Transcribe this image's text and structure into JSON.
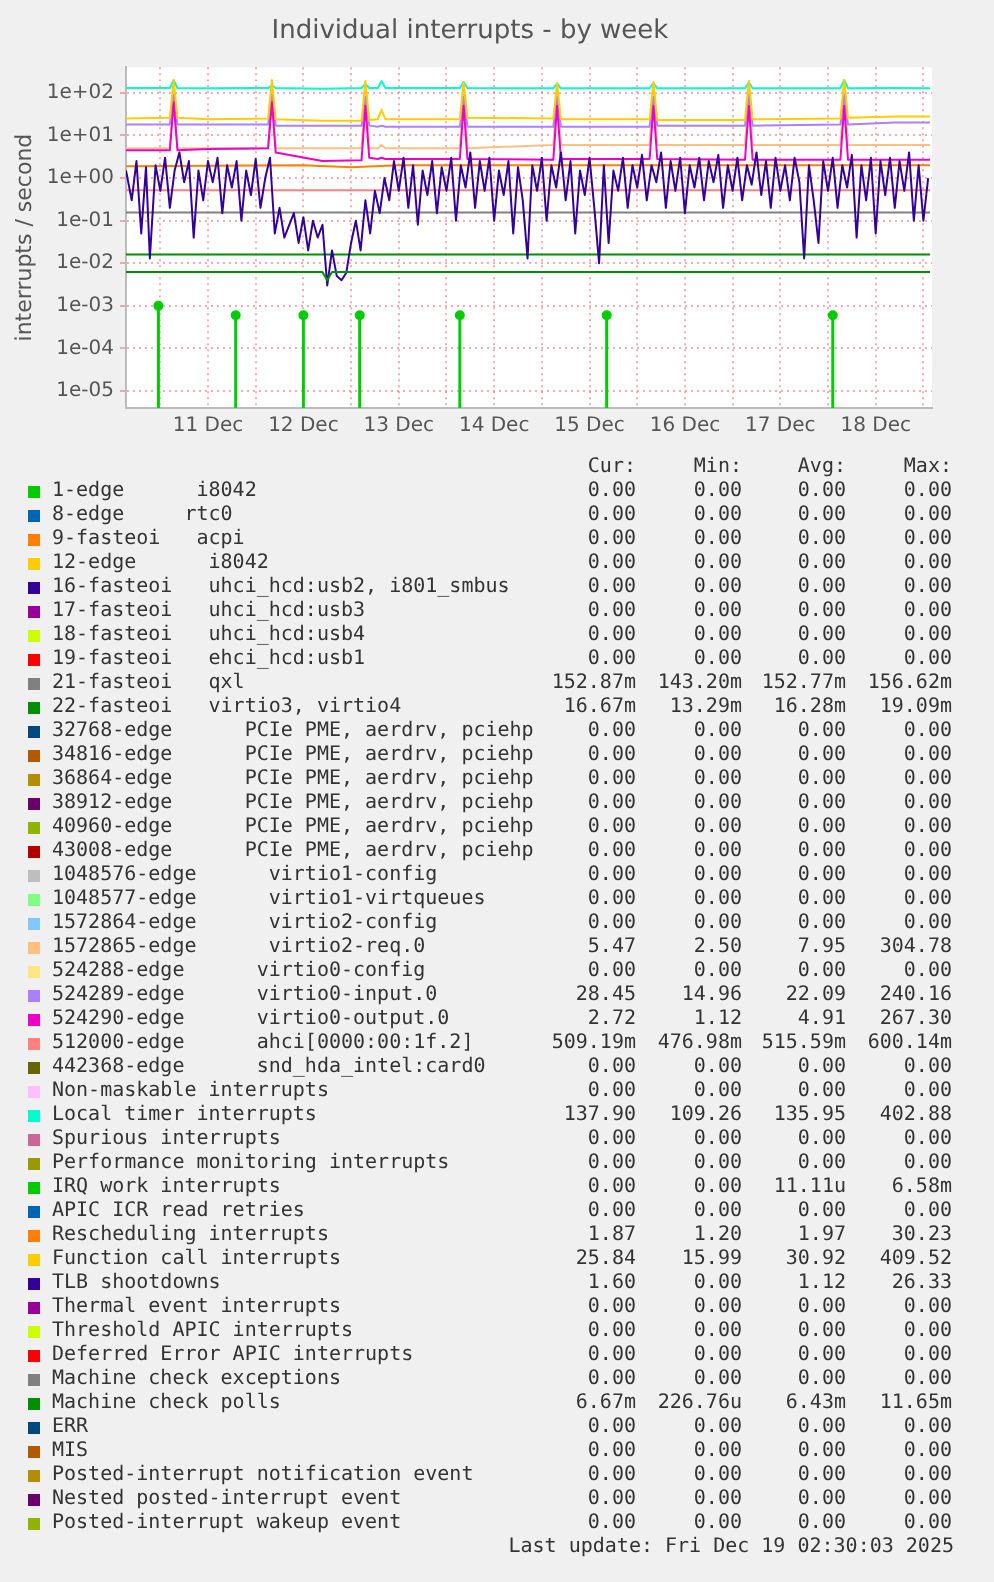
{
  "chart_data": {
    "type": "line",
    "title": "Individual interrupts - by week",
    "ylabel": "interrupts / second",
    "log": true,
    "grid": true,
    "legend": "bottom",
    "marker": "none",
    "line_style": "solid",
    "xlim": [
      "--12-10T15:22",
      "--12-19T02:10"
    ],
    "xticks": [
      {
        "value": "--12-11",
        "label": null
      },
      {
        "value": "--12-11T12:00",
        "label": "11 Dec"
      },
      {
        "value": "--12-12",
        "label": null
      },
      {
        "value": "--12-12T12:00",
        "label": "12 Dec"
      },
      {
        "value": "--12-13",
        "label": null
      },
      {
        "value": "--12-13T12:00",
        "label": "13 Dec"
      },
      {
        "value": "--12-14",
        "label": null
      },
      {
        "value": "--12-14T12:00",
        "label": "14 Dec"
      },
      {
        "value": "--12-15",
        "label": null
      },
      {
        "value": "--12-15T12:00",
        "label": "15 Dec"
      },
      {
        "value": "--12-16",
        "label": null
      },
      {
        "value": "--12-16T12:00",
        "label": "16 Dec"
      },
      {
        "value": "--12-17",
        "label": null
      },
      {
        "value": "--12-17T12:00",
        "label": "17 Dec"
      },
      {
        "value": "--12-18",
        "label": null
      },
      {
        "value": "--12-18T12:00",
        "label": "18 Dec"
      },
      {
        "value": "--12-19",
        "label": null
      }
    ],
    "ylim": [
      4e-06,
      400
    ],
    "yticks": [
      {
        "value": 1e-05,
        "label": "1e-05"
      },
      {
        "value": 0.0001,
        "label": "1e-04"
      },
      {
        "value": 0.001,
        "label": "1e-03"
      },
      {
        "value": 0.01,
        "label": "1e-02"
      },
      {
        "value": 0.1,
        "label": "1e-01"
      },
      {
        "value": 1,
        "label": "1e+00"
      },
      {
        "value": 10,
        "label": "1e+01"
      },
      {
        "value": 100,
        "label": "1e+02"
      }
    ],
    "series": [
      {
        "name": "1-edge      i8042",
        "color": "#00cc00"
      },
      {
        "name": "8-edge     rtc0",
        "color": "#0066b3"
      },
      {
        "name": "9-fasteoi   acpi",
        "color": "#ff8000"
      },
      {
        "name": "12-edge      i8042",
        "color": "#ffcc00"
      },
      {
        "name": "16-fasteoi   uhci_hcd:usb2, i801_smbus",
        "color": "#330099"
      },
      {
        "name": "17-fasteoi   uhci_hcd:usb3",
        "color": "#990099"
      },
      {
        "name": "18-fasteoi   uhci_hcd:usb4",
        "color": "#ccff00"
      },
      {
        "name": "19-fasteoi   ehci_hcd:usb1",
        "color": "#ff0000"
      },
      {
        "name": "21-fasteoi   qxl",
        "color": "#808080",
        "x": [
          "--12-10T15:22",
          "--12-19T01:41"
        ],
        "values": [
          0.155,
          0.155
        ]
      },
      {
        "name": "22-fasteoi   virtio3, virtio4",
        "color": "#008f00",
        "x": [
          "--12-10T15:22",
          "--12-19T01:41"
        ],
        "values": [
          0.016,
          0.016
        ]
      },
      {
        "name": "32768-edge      PCIe PME, aerdrv, pciehp",
        "color": "#00487d"
      },
      {
        "name": "34816-edge      PCIe PME, aerdrv, pciehp",
        "color": "#b35a00"
      },
      {
        "name": "36864-edge      PCIe PME, aerdrv, pciehp",
        "color": "#b38f00"
      },
      {
        "name": "38912-edge      PCIe PME, aerdrv, pciehp",
        "color": "#6b006b"
      },
      {
        "name": "40960-edge      PCIe PME, aerdrv, pciehp",
        "color": "#8fb300"
      },
      {
        "name": "43008-edge      PCIe PME, aerdrv, pciehp",
        "color": "#b30000"
      },
      {
        "name": "1048576-edge      virtio1-config",
        "color": "#bebebe"
      },
      {
        "name": "1048577-edge      virtio1-virtqueues",
        "color": "#80ff80"
      },
      {
        "name": "1572864-edge      virtio2-config",
        "color": "#80c9ff"
      },
      {
        "name": "1572865-edge      virtio2-req.0",
        "color": "#ffc080",
        "x": [
          "--12-10T15:22",
          "--12-11T02:24",
          "--12-11T03:22",
          "--12-11T04:19",
          "--12-11T12:00",
          "--12-12T03:07",
          "--12-12T04:05",
          "--12-12T05:02",
          "--12-12T16:48",
          "--12-13T02:38",
          "--12-13T03:36",
          "--12-13T04:34",
          "--12-13T06:43",
          "--12-13T07:41",
          "--12-13T08:38",
          "--12-14T03:22",
          "--12-14T04:19",
          "--12-14T05:17",
          "--12-15T02:53",
          "--12-15T03:50",
          "--12-15T04:48",
          "--12-16T03:07",
          "--12-16T04:05",
          "--12-16T05:02",
          "--12-17T03:07",
          "--12-17T04:05",
          "--12-17T05:02",
          "--12-18T03:07",
          "--12-18T04:05",
          "--12-18T05:02",
          "--12-18T16:48",
          "--12-19T01:41"
        ],
        "values": [
          5,
          5,
          100,
          5,
          5,
          5,
          100,
          5,
          5,
          5,
          100,
          5,
          5,
          6,
          5,
          5,
          100,
          5,
          6,
          100,
          6,
          6,
          100,
          6,
          6,
          100,
          6,
          6,
          100,
          6,
          6,
          6
        ]
      },
      {
        "name": "524288-edge      virtio0-config",
        "color": "#ffe680"
      },
      {
        "name": "524289-edge      virtio0-input.0",
        "color": "#aa80ff",
        "x": [
          "--12-10T15:22",
          "--12-11T02:24",
          "--12-11T03:22",
          "--12-11T04:19",
          "--12-11T12:00",
          "--12-12T03:07",
          "--12-12T04:05",
          "--12-12T05:02",
          "--12-12T16:48",
          "--12-13T02:38",
          "--12-13T03:36",
          "--12-13T04:34",
          "--12-13T06:43",
          "--12-13T07:41",
          "--12-13T08:38",
          "--12-14T03:22",
          "--12-14T04:19",
          "--12-14T05:17",
          "--12-15T02:53",
          "--12-15T03:50",
          "--12-15T04:48",
          "--12-16T03:07",
          "--12-16T04:05",
          "--12-16T05:02",
          "--12-17T03:07",
          "--12-17T04:05",
          "--12-17T05:02",
          "--12-18T03:07",
          "--12-18T04:05",
          "--12-18T05:02",
          "--12-18T16:48",
          "--12-19T01:41"
        ],
        "values": [
          18,
          18,
          90,
          18,
          18,
          18,
          90,
          17,
          17,
          17,
          80,
          17,
          16,
          17,
          16,
          16,
          80,
          16,
          16,
          80,
          16,
          16,
          80,
          17,
          17,
          90,
          17,
          18,
          90,
          18,
          20,
          20
        ]
      },
      {
        "name": "524290-edge      virtio0-output.0",
        "color": "#ee00cc",
        "x": [
          "--12-10T15:22",
          "--12-11T02:24",
          "--12-11T03:22",
          "--12-11T04:19",
          "--12-11T12:00",
          "--12-12T03:07",
          "--12-12T04:05",
          "--12-12T05:02",
          "--12-12T16:48",
          "--12-13T02:38",
          "--12-13T03:36",
          "--12-13T04:34",
          "--12-13T06:43",
          "--12-13T07:41",
          "--12-13T08:38",
          "--12-14T03:22",
          "--12-14T04:19",
          "--12-14T05:17",
          "--12-15T02:53",
          "--12-15T03:50",
          "--12-15T04:48",
          "--12-16T03:07",
          "--12-16T04:05",
          "--12-16T05:02",
          "--12-17T03:07",
          "--12-17T04:05",
          "--12-17T05:02",
          "--12-18T03:07",
          "--12-18T04:05",
          "--12-18T05:02",
          "--12-18T16:48",
          "--12-19T01:41"
        ],
        "values": [
          4.5,
          4.5,
          60,
          4.5,
          4.8,
          5,
          60,
          4,
          2.5,
          2.6,
          50,
          3,
          2.8,
          3,
          2.8,
          2.8,
          50,
          2.8,
          2.7,
          50,
          2.8,
          2.8,
          50,
          2.8,
          2.7,
          50,
          2.7,
          2.7,
          50,
          2.7,
          2.7,
          2.7
        ]
      },
      {
        "name": "512000-edge      ahci[0000:00:1f.2]",
        "color": "#ff8080",
        "x": [
          "--12-10T15:22",
          "--12-19T01:41"
        ],
        "values": [
          0.52,
          0.52
        ]
      },
      {
        "name": "442368-edge      snd_hda_intel:card0",
        "color": "#666600"
      },
      {
        "name": "Non-maskable interrupts",
        "color": "#ffbfff"
      },
      {
        "name": "Local timer interrupts",
        "color": "#00ffcc",
        "x": [
          "--12-10T15:22",
          "--12-11T02:24",
          "--12-11T03:22",
          "--12-11T04:19",
          "--12-11T12:00",
          "--12-12T03:07",
          "--12-12T04:05",
          "--12-12T05:02",
          "--12-12T16:48",
          "--12-13T02:38",
          "--12-13T03:36",
          "--12-13T04:34",
          "--12-13T06:43",
          "--12-13T07:41",
          "--12-13T08:38",
          "--12-14T03:22",
          "--12-14T04:19",
          "--12-14T05:17",
          "--12-15T02:53",
          "--12-15T03:50",
          "--12-15T04:48",
          "--12-16T03:07",
          "--12-16T04:05",
          "--12-16T05:02",
          "--12-17T03:07",
          "--12-17T04:05",
          "--12-17T05:02",
          "--12-18T03:07",
          "--12-18T04:05",
          "--12-18T05:02",
          "--12-18T16:48",
          "--12-19T01:41"
        ],
        "values": [
          130,
          130,
          200,
          130,
          128,
          130,
          150,
          130,
          125,
          130,
          160,
          130,
          130,
          190,
          130,
          130,
          180,
          130,
          128,
          165,
          128,
          128,
          170,
          128,
          128,
          175,
          128,
          128,
          200,
          128,
          130,
          128
        ]
      },
      {
        "name": "Spurious interrupts",
        "color": "#cc6699"
      },
      {
        "name": "Performance monitoring interrupts",
        "color": "#999900"
      },
      {
        "name": "IRQ work interrupts",
        "type": "lollipop",
        "marker": "circle",
        "color": "#00cc00",
        "x": [
          "--12-10T23:31",
          "--12-11T18:58",
          "--12-12T12:00",
          "--12-13T02:10",
          "--12-14T03:22",
          "--12-15T16:19",
          "--12-18T01:12"
        ],
        "values": [
          0.001,
          0.0006,
          0.0006,
          0.0006,
          0.0006,
          0.0006,
          0.0006
        ]
      },
      {
        "name": "APIC ICR read retries",
        "color": "#0066b3"
      },
      {
        "name": "Rescheduling interrupts",
        "color": "#ff8000",
        "x": [
          "--12-10T15:22",
          "--12-12T12:00",
          "--12-13T00:00",
          "--12-13T12:00",
          "--12-19T01:41"
        ],
        "values": [
          1.9,
          2,
          1.8,
          2,
          2
        ]
      },
      {
        "name": "Function call interrupts",
        "color": "#ffcc00",
        "x": [
          "--12-10T15:22",
          "--12-11T02:24",
          "--12-11T03:22",
          "--12-11T04:19",
          "--12-11T12:00",
          "--12-12T03:07",
          "--12-12T04:05",
          "--12-12T05:02",
          "--12-12T16:48",
          "--12-13T02:38",
          "--12-13T03:36",
          "--12-13T04:34",
          "--12-13T06:43",
          "--12-13T07:41",
          "--12-13T08:38",
          "--12-14T03:22",
          "--12-14T04:19",
          "--12-14T05:17",
          "--12-15T02:53",
          "--12-15T03:50",
          "--12-15T04:48",
          "--12-16T03:07",
          "--12-16T04:05",
          "--12-16T05:02",
          "--12-17T03:07",
          "--12-17T04:05",
          "--12-17T05:02",
          "--12-18T03:07",
          "--12-18T04:05",
          "--12-18T05:02",
          "--12-18T16:48",
          "--12-19T01:41"
        ],
        "values": [
          25,
          26,
          200,
          26,
          24,
          25,
          200,
          24,
          22,
          22,
          190,
          23,
          24,
          40,
          24,
          24,
          180,
          26,
          25,
          170,
          24,
          24,
          180,
          23,
          23,
          190,
          24,
          25,
          200,
          26,
          28,
          28
        ]
      },
      {
        "name": "TLB shootdowns",
        "color": "#330099",
        "x": [
          "--12-10T15:22",
          "--12-10T16:48",
          "--12-10T18:00",
          "--12-10T19:12",
          "--12-10T20:24",
          "--12-10T21:22",
          "--12-10T22:48",
          "--12-11T00:00",
          "--12-11T01:12",
          "--12-11T02:24",
          "--12-11T03:36",
          "--12-11T04:48",
          "--12-11T06:00",
          "--12-11T07:12",
          "--12-11T08:24",
          "--12-11T09:36",
          "--12-11T10:48",
          "--12-11T12:00",
          "--12-11T13:12",
          "--12-11T14:24",
          "--12-11T15:36",
          "--12-11T16:48",
          "--12-11T18:00",
          "--12-11T19:12",
          "--12-11T20:24",
          "--12-11T21:36",
          "--12-11T22:48",
          "--12-12T00:00",
          "--12-12T01:12",
          "--12-12T02:24",
          "--12-12T03:36",
          "--12-12T04:48",
          "--12-12T06:00",
          "--12-12T07:12",
          "--12-12T09:36",
          "--12-12T10:48",
          "--12-12T12:00",
          "--12-12T13:12",
          "--12-12T14:24",
          "--12-12T15:36",
          "--12-12T16:48",
          "--12-12T18:00",
          "--12-12T19:12",
          "--12-12T20:24",
          "--12-12T21:36",
          "--12-12T22:48",
          "--12-13T00:00",
          "--12-13T01:12",
          "--12-13T02:24",
          "--12-13T03:36",
          "--12-13T04:48",
          "--12-13T06:00",
          "--12-13T07:12",
          "--12-13T08:24",
          "--12-13T09:36",
          "--12-13T10:48",
          "--12-13T12:00",
          "--12-13T13:12",
          "--12-13T14:24",
          "--12-13T15:36",
          "--12-13T16:48",
          "--12-13T18:00",
          "--12-13T19:12",
          "--12-13T20:24",
          "--12-13T21:36",
          "--12-13T22:48",
          "--12-14T00:00",
          "--12-14T01:12",
          "--12-14T02:24",
          "--12-14T03:36",
          "--12-14T04:48",
          "--12-14T06:00",
          "--12-14T07:12",
          "--12-14T08:24",
          "--12-14T09:36",
          "--12-14T10:48",
          "--12-14T12:00",
          "--12-14T13:12",
          "--12-14T14:24",
          "--12-14T15:36",
          "--12-14T16:48",
          "--12-14T18:00",
          "--12-14T19:12",
          "--12-14T20:24",
          "--12-14T21:36",
          "--12-14T22:48",
          "--12-15T00:00",
          "--12-15T01:12",
          "--12-15T02:24",
          "--12-15T03:36",
          "--12-15T04:48",
          "--12-15T06:00",
          "--12-15T07:12",
          "--12-15T08:24",
          "--12-15T09:36",
          "--12-15T10:48",
          "--12-15T12:00",
          "--12-15T13:12",
          "--12-15T14:24",
          "--12-15T15:36",
          "--12-15T16:48",
          "--12-15T18:00",
          "--12-15T19:12",
          "--12-15T20:24",
          "--12-15T21:36",
          "--12-15T22:48",
          "--12-16T00:00",
          "--12-16T01:12",
          "--12-16T02:24",
          "--12-16T03:36",
          "--12-16T04:48",
          "--12-16T06:00",
          "--12-16T07:12",
          "--12-16T08:24",
          "--12-16T09:36",
          "--12-16T10:48",
          "--12-16T12:00",
          "--12-16T13:12",
          "--12-16T14:24",
          "--12-16T15:36",
          "--12-16T16:48",
          "--12-16T18:00",
          "--12-16T19:12",
          "--12-16T20:24",
          "--12-16T21:36",
          "--12-16T22:48",
          "--12-17T00:00",
          "--12-17T01:12",
          "--12-17T02:24",
          "--12-17T03:36",
          "--12-17T04:48",
          "--12-17T06:00",
          "--12-17T07:12",
          "--12-17T08:24",
          "--12-17T09:36",
          "--12-17T10:48",
          "--12-17T12:00",
          "--12-17T13:12",
          "--12-17T14:24",
          "--12-17T15:36",
          "--12-17T16:48",
          "--12-17T18:00",
          "--12-17T19:12",
          "--12-17T20:24",
          "--12-17T21:36",
          "--12-17T22:48",
          "--12-18T00:00",
          "--12-18T01:12",
          "--12-18T02:24",
          "--12-18T03:36",
          "--12-18T04:48",
          "--12-18T06:00",
          "--12-18T07:12",
          "--12-18T08:24",
          "--12-18T09:36",
          "--12-18T10:48",
          "--12-18T12:00",
          "--12-18T13:12",
          "--12-18T14:24",
          "--12-18T15:36",
          "--12-18T16:48",
          "--12-18T18:00",
          "--12-18T19:12",
          "--12-18T20:24",
          "--12-18T21:36",
          "--12-18T22:48",
          "--12-19T00:00",
          "--12-19T01:12"
        ],
        "values": [
          1.5,
          0.3,
          2.5,
          0.05,
          1.8,
          0.013,
          2,
          0.5,
          3,
          0.2,
          1.5,
          4,
          0.8,
          2.5,
          0.04,
          1.5,
          0.3,
          2.5,
          0.8,
          3,
          0.15,
          2,
          0.6,
          2.5,
          0.1,
          1.5,
          0.4,
          2.8,
          0.2,
          1,
          3,
          0.05,
          0.2,
          0.04,
          0.15,
          0.03,
          0.12,
          0.02,
          0.1,
          0.04,
          0.08,
          0.003,
          0.02,
          0.005,
          0.004,
          0.006,
          0.03,
          0.1,
          0.02,
          0.3,
          0.05,
          0.5,
          0.15,
          1,
          0.3,
          2.5,
          0.5,
          3,
          0.2,
          2,
          0.08,
          1.5,
          0.4,
          2.5,
          0.15,
          1.8,
          0.5,
          3,
          0.1,
          2,
          0.6,
          4,
          0.2,
          2.5,
          0.5,
          3,
          0.1,
          1.5,
          0.4,
          2.5,
          0.05,
          1.8,
          0.3,
          0.013,
          2,
          0.5,
          3,
          0.1,
          2,
          0.6,
          4,
          0.3,
          2.5,
          0.05,
          1.5,
          0.4,
          3,
          0.2,
          0.01,
          2,
          0.03,
          1.5,
          0.5,
          3,
          0.2,
          2,
          0.6,
          3.5,
          0.3,
          2,
          0.8,
          4,
          0.2,
          2.5,
          0.5,
          3,
          0.15,
          2,
          0.6,
          3,
          0.3,
          2.5,
          0.8,
          3.5,
          0.2,
          2,
          0.5,
          3,
          0.3,
          2,
          0.7,
          4,
          0.4,
          2.5,
          0.2,
          3,
          0.5,
          2,
          0.3,
          3,
          0.8,
          0.013,
          2,
          0.3,
          0.03,
          2.5,
          0.5,
          3,
          0.2,
          2,
          0.6,
          3.5,
          0.04,
          2,
          0.3,
          3,
          0.05,
          2.5,
          0.4,
          3,
          0.2,
          2.5,
          0.5,
          4,
          0.1,
          2,
          0.1,
          1
        ]
      },
      {
        "name": "Thermal event interrupts",
        "color": "#990099"
      },
      {
        "name": "Threshold APIC interrupts",
        "color": "#ccff00"
      },
      {
        "name": "Deferred Error APIC interrupts",
        "color": "#ff0000"
      },
      {
        "name": "Machine check exceptions",
        "color": "#808080"
      },
      {
        "name": "Machine check polls",
        "color": "#008f00",
        "x": [
          "--12-10T15:22",
          "--12-12T16:48",
          "--12-12T18:00",
          "--12-12T19:12",
          "--12-19T01:41"
        ],
        "values": [
          0.0062,
          0.0062,
          0.004,
          0.0062,
          0.0062
        ]
      },
      {
        "name": "ERR",
        "color": "#00487d"
      },
      {
        "name": "MIS",
        "color": "#b35a00"
      },
      {
        "name": "Posted-interrupt notification event",
        "color": "#b38f00"
      },
      {
        "name": "Nested posted-interrupt event",
        "color": "#6b006b"
      },
      {
        "name": "Posted-interrupt wakeup event",
        "color": "#8fb300"
      }
    ],
    "annotations": [
      "Cur: Min: Avg: Max:",
      "0.00 0.00 0.00 0.00",
      "0.00 0.00 0.00 0.00",
      "0.00 0.00 0.00 0.00",
      "0.00 0.00 0.00 0.00",
      "0.00 0.00 0.00 0.00",
      "0.00 0.00 0.00 0.00",
      "0.00 0.00 0.00 0.00",
      "0.00 0.00 0.00 0.00",
      "152.87m 143.20m 152.77m 156.62m",
      "16.67m 13.29m 16.28m 19.09m",
      "0.00 0.00 0.00 0.00",
      "0.00 0.00 0.00 0.00",
      "0.00 0.00 0.00 0.00",
      "0.00 0.00 0.00 0.00",
      "0.00 0.00 0.00 0.00",
      "0.00 0.00 0.00 0.00",
      "0.00 0.00 0.00 0.00",
      "0.00 0.00 0.00 0.00",
      "0.00 0.00 0.00 0.00",
      "5.47 2.50 7.95 304.78",
      "0.00 0.00 0.00 0.00",
      "28.45 14.96 22.09 240.16",
      "2.72 1.12 4.91 267.30",
      "509.19m 476.98m 515.59m 600.14m",
      "0.00 0.00 0.00 0.00",
      "0.00 0.00 0.00 0.00",
      "137.90 109.26 135.95 402.88",
      "0.00 0.00 0.00 0.00",
      "0.00 0.00 0.00 0.00",
      "0.00 0.00 11.11u 6.58m",
      "0.00 0.00 0.00 0.00",
      "1.87 1.20 1.97 30.23",
      "25.84 15.99 30.92 409.52",
      "1.60 0.00 1.12 26.33",
      "0.00 0.00 0.00 0.00",
      "0.00 0.00 0.00 0.00",
      "0.00 0.00 0.00 0.00",
      "0.00 0.00 0.00 0.00",
      "6.67m 226.76u 6.43m 11.65m",
      "0.00 0.00 0.00 0.00",
      "0.00 0.00 0.00 0.00",
      "0.00 0.00 0.00 0.00",
      "0.00 0.00 0.00 0.00",
      "0.00 0.00 0.00 0.00",
      "Last update: Fri Dec 19 02:30:03 2025"
    ]
  }
}
